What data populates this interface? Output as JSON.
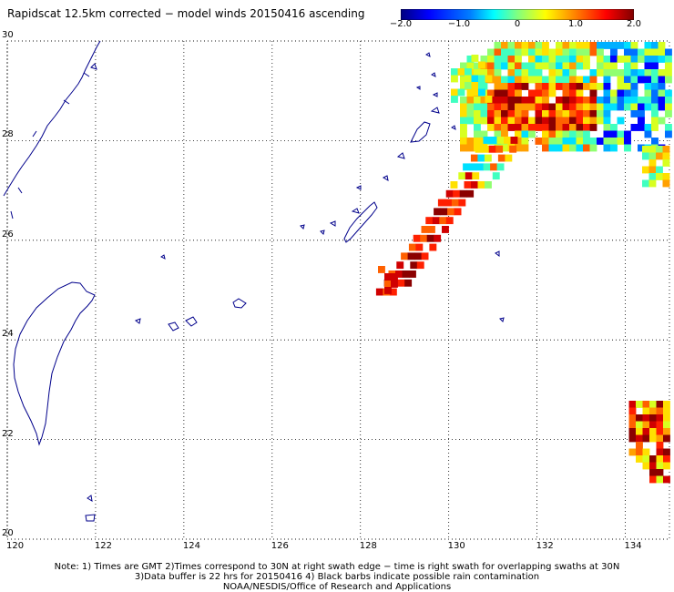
{
  "title": "Rapidscat 12.5km corrected − model winds 20150416 ascending",
  "colorbar": {
    "ticks": [
      "−2.0",
      "−1.0",
      "0",
      "1.0",
      "2.0"
    ],
    "tick_values": [
      -2.0,
      -1.0,
      0,
      1.0,
      2.0
    ],
    "range": [
      -2.0,
      2.0
    ],
    "colors": [
      "#00007f",
      "#0000ff",
      "#0080ff",
      "#00ffff",
      "#80ff80",
      "#ffff00",
      "#ff8000",
      "#ff0000",
      "#7f0000"
    ]
  },
  "map": {
    "lon_range": [
      120,
      135
    ],
    "lat_range": [
      20,
      30
    ],
    "lon_ticks": [
      "120",
      "122",
      "124",
      "126",
      "128",
      "130",
      "132",
      "134"
    ],
    "lat_ticks": [
      "30",
      "28",
      "26",
      "24",
      "22",
      "20"
    ],
    "coast_color": "#00008b",
    "grid_style": "dotted"
  },
  "notes": [
    "Note: 1) Times are GMT 2)Times correspond to 30N at right swath edge − time is right swath for overlapping swaths at 30N",
    "3)Data buffer is 22 hrs for 20150416 4) Black barbs indicate possible rain contamination",
    "NOAA/NESDIS/Office of Research and Applications"
  ]
}
